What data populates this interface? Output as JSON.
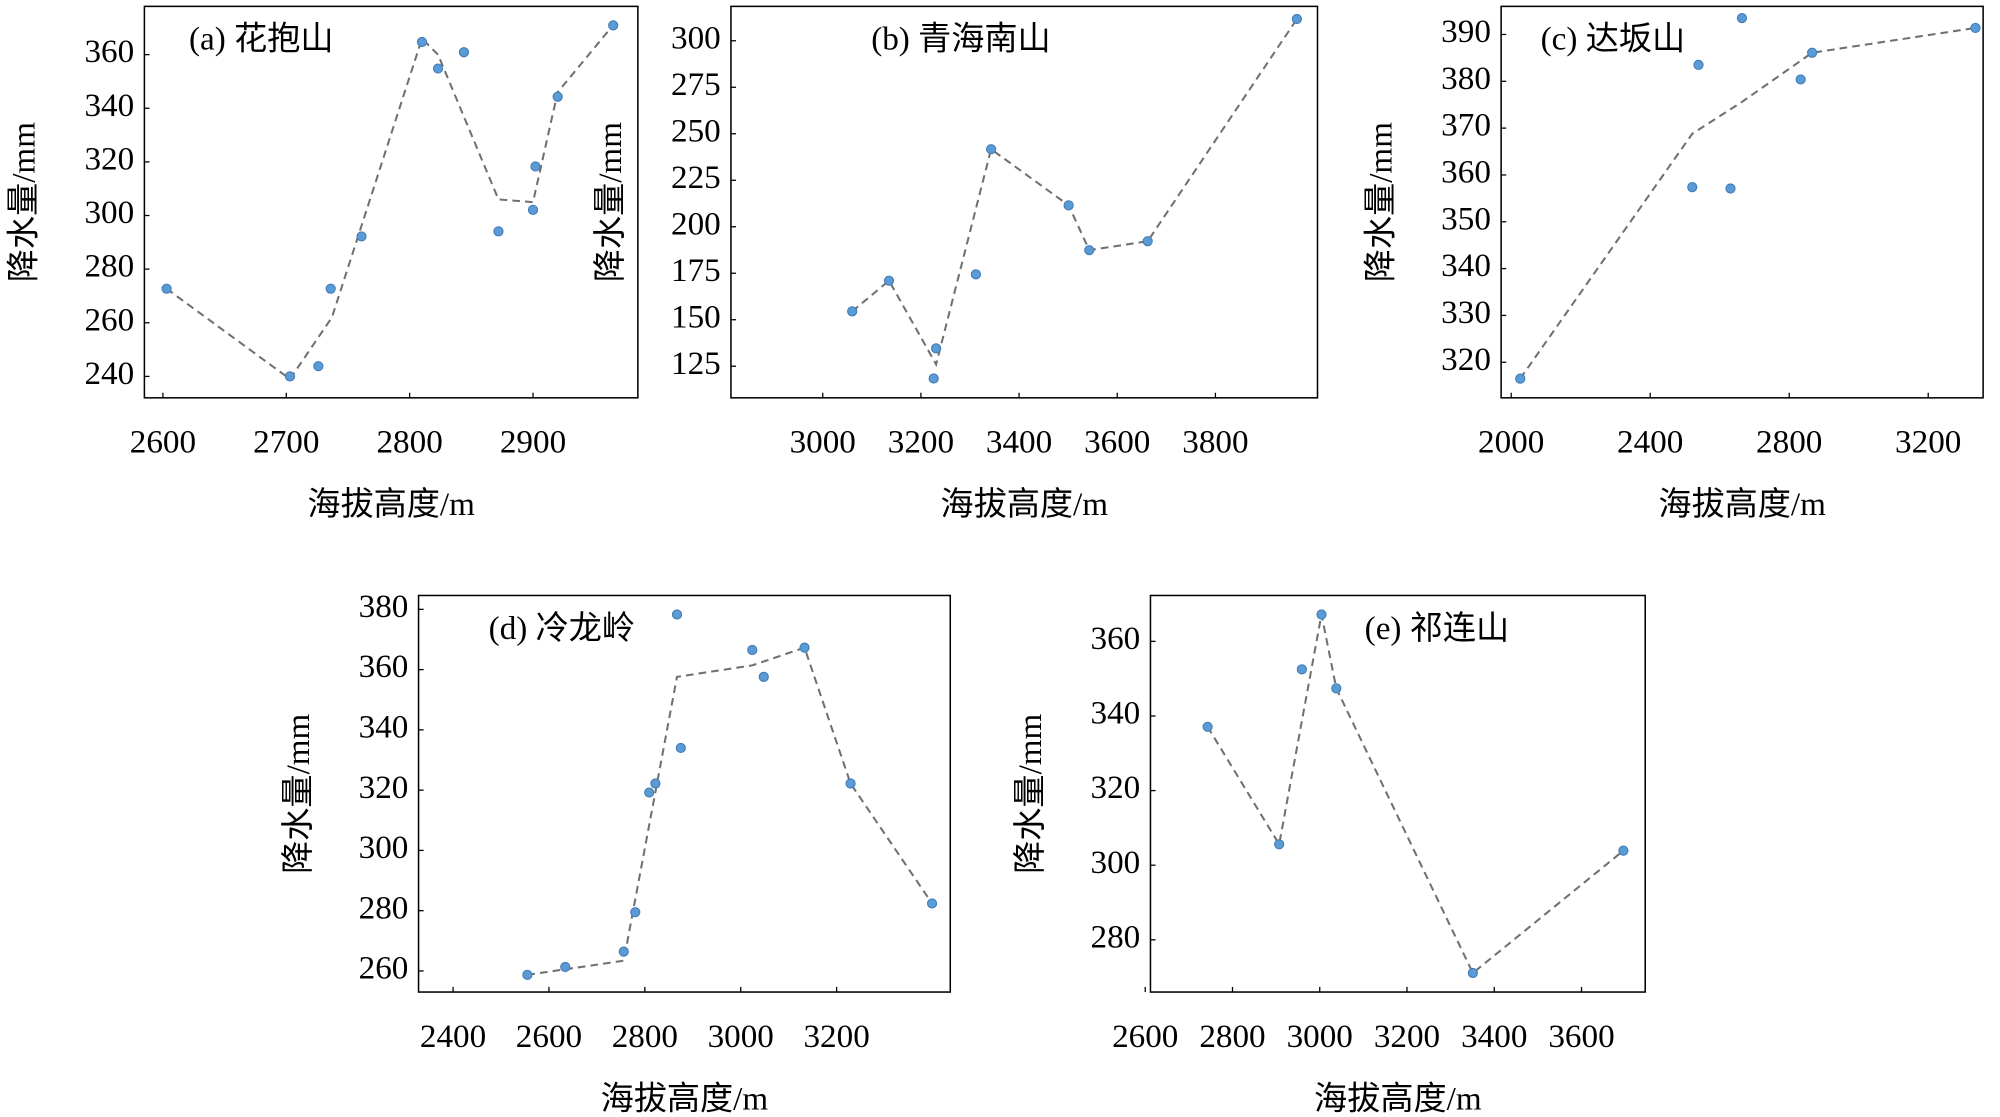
{
  "chart_data": [
    {
      "type": "scatter",
      "title": "(a) 花抱山",
      "xlabel": "海拔高度/m",
      "ylabel": "降水量/mm",
      "x": [
        2603,
        2703,
        2726,
        2736,
        2761,
        2810,
        2823,
        2844,
        2872,
        2900,
        2902,
        2920,
        2965
      ],
      "values": [
        272.7,
        240,
        243.8,
        272.7,
        292.2,
        364.7,
        354.8,
        360.9,
        294.1,
        302.1,
        318.3,
        344.3,
        370.9
      ],
      "color": "#5b9bd5",
      "line": {
        "x": [
          2603,
          2703,
          2737,
          2810,
          2823,
          2872,
          2900,
          2920,
          2965
        ],
        "values": [
          272.7,
          239,
          262,
          366,
          360,
          306,
          305,
          346,
          371
        ],
        "color": "#707070",
        "style": "dashed"
      },
      "xlim": [
        2585,
        2985
      ],
      "ylim": [
        232,
        378
      ],
      "xticks": [
        2600,
        2700,
        2800,
        2900
      ],
      "yticks": [
        240,
        260,
        280,
        300,
        320,
        340,
        360
      ]
    },
    {
      "type": "scatter",
      "title": "(b) 青海南山",
      "xlabel": "海拔高度/m",
      "ylabel": "降水量/mm",
      "x": [
        3060,
        3135,
        3231,
        3226,
        3312,
        3343,
        3501,
        3543,
        3662,
        3966
      ],
      "values": [
        154.5,
        171,
        134.6,
        118.4,
        174.4,
        241.7,
        211.5,
        187.4,
        192.2,
        311.7
      ],
      "color": "#5b9bd5",
      "line": {
        "x": [
          3060,
          3135,
          3231,
          3343,
          3501,
          3543,
          3662,
          3966
        ],
        "values": [
          154.5,
          171,
          126,
          241.7,
          211.5,
          187.4,
          192.2,
          311.7
        ],
        "color": "#707070",
        "style": "dashed"
      },
      "xlim": [
        2813,
        4008
      ],
      "ylim": [
        108,
        318.5
      ],
      "xticks": [
        3000,
        3200,
        3400,
        3600,
        3800
      ],
      "yticks": [
        125,
        150,
        175,
        200,
        225,
        250,
        275,
        300
      ]
    },
    {
      "type": "scatter",
      "title": "(c) 达坂山",
      "xlabel": "海拔高度/m",
      "ylabel": "降水量/mm",
      "x": [
        2026,
        2521,
        2539,
        2631,
        2664,
        2833,
        2866,
        3336
      ],
      "values": [
        316.5,
        357.4,
        383.5,
        357.1,
        393.5,
        380.4,
        386.1,
        391.4
      ],
      "color": "#5b9bd5",
      "line": {
        "x": [
          2026,
          2521,
          2664,
          2866,
          3336
        ],
        "values": [
          316.5,
          368.8,
          375.6,
          386.1,
          391.4
        ],
        "color": "#707070",
        "style": "dashed"
      },
      "xlim": [
        1971,
        3358
      ],
      "ylim": [
        312.4,
        396
      ],
      "xticks": [
        2000,
        2400,
        2800,
        3200
      ],
      "yticks": [
        320,
        330,
        340,
        350,
        360,
        370,
        380,
        390
      ]
    },
    {
      "type": "scatter",
      "title": "(d) 冷龙岭",
      "xlabel": "海拔高度/m",
      "ylabel": "降水量/mm",
      "x": [
        2555,
        2634,
        2756,
        2780,
        2809,
        2822,
        2867,
        2875,
        3024,
        3048,
        3133,
        3229,
        3399
      ],
      "values": [
        258.7,
        261.3,
        266.4,
        279.5,
        319.2,
        322.2,
        378.3,
        334,
        366.5,
        357.6,
        367.3,
        322.2,
        282.4
      ],
      "color": "#5b9bd5",
      "line": {
        "x": [
          2555,
          2756,
          2867,
          3024,
          3133,
          3229,
          3399
        ],
        "values": [
          258.7,
          263.4,
          357.6,
          361.4,
          367.3,
          322.2,
          282.4
        ],
        "color": "#707070",
        "style": "dashed"
      },
      "xlim": [
        2328,
        3437
      ],
      "ylim": [
        253,
        384.6
      ],
      "xticks": [
        2400,
        2600,
        2800,
        3000,
        3200
      ],
      "yticks": [
        260,
        280,
        300,
        320,
        340,
        360,
        380
      ]
    },
    {
      "type": "scatter",
      "title": "(e) 祁连山",
      "xlabel": "海拔高度/m",
      "ylabel": "降水量/mm",
      "x": [
        2743,
        2907,
        2959,
        3004,
        3038,
        3351,
        3696
      ],
      "values": [
        337.1,
        305.6,
        352.5,
        367.2,
        347.4,
        271.1,
        303.9
      ],
      "color": "#5b9bd5",
      "line": {
        "x": [
          2743,
          2907,
          3004,
          3038,
          3351,
          3696
        ],
        "values": [
          337.1,
          305.6,
          367.2,
          347.4,
          271.1,
          303.9
        ],
        "color": "#707070",
        "style": "dashed"
      },
      "xlim": [
        2612,
        3746
      ],
      "ylim": [
        266,
        372.3
      ],
      "xticks": [
        2600,
        2800,
        3000,
        3200,
        3400,
        3600
      ],
      "yticks": [
        280,
        300,
        320,
        340,
        360
      ]
    }
  ]
}
